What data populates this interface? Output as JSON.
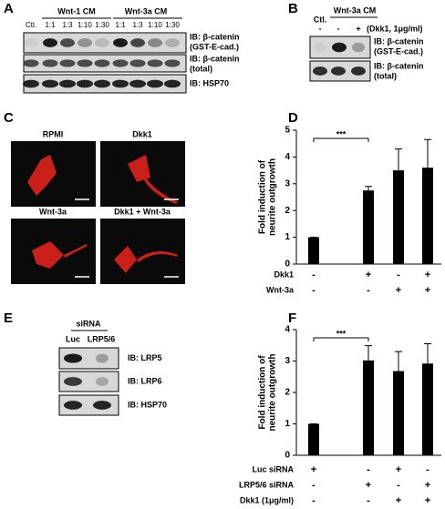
{
  "panel_labels": [
    "A",
    "B",
    "C",
    "D",
    "E",
    "F"
  ],
  "panel_a": {
    "groups": [
      "Wnt-1 CM",
      "Wnt-3a CM"
    ],
    "lanes": [
      "Ctl.",
      "1:1",
      "1:3",
      "1:10",
      "1:30",
      "1:1",
      "1:3",
      "1:10",
      "1:30"
    ],
    "blots": [
      [
        "IB: β-catenin",
        "(GST-E-cad.)"
      ],
      [
        "IB: β-catenin",
        "(total)"
      ],
      [
        "IB: HSP70"
      ]
    ]
  },
  "panel_b": {
    "group": "Wnt-3a CM",
    "control": "Ctl.",
    "treatment": [
      "-",
      "-",
      "+"
    ],
    "treatment_label": "(Dkk1, 1μg/ml)",
    "blots": [
      [
        "IB: β-catenin",
        "(GST-E-cad.)"
      ],
      [
        "IB: β-catenin",
        "(total)"
      ]
    ]
  },
  "panel_c": {
    "images": [
      "RPMI",
      "Dkk1",
      "Wnt-3a",
      "Dkk1 + Wnt-3a"
    ]
  },
  "panel_e": {
    "group": "siRNA",
    "lanes": [
      "Luc",
      "LRP5/6"
    ],
    "blots": [
      "IB: LRP5",
      "IB: LRP6",
      "IB: HSP70"
    ]
  },
  "chart_data": [
    {
      "type": "bar",
      "ylabel": [
        "Fold induction of",
        "neurite outgrowth"
      ],
      "color": "#000000",
      "values": [
        1.0,
        2.75,
        3.5,
        3.6
      ],
      "errors": [
        0,
        0.15,
        0.8,
        1.05
      ],
      "ylim": [
        0,
        5
      ],
      "yticks": [
        0,
        1,
        2,
        3,
        4,
        5
      ],
      "significance": "***",
      "conditions": [
        {
          "name": "Dkk1",
          "marks": [
            "-",
            "+",
            "-",
            "+"
          ]
        },
        {
          "name": "Wnt-3a",
          "marks": [
            "-",
            "-",
            "+",
            "+"
          ]
        }
      ]
    },
    {
      "type": "bar",
      "ylabel": [
        "Fold induction of",
        "neurite outgrowth"
      ],
      "color": "#000000",
      "values": [
        1.0,
        3.02,
        2.68,
        2.92
      ],
      "errors": [
        0,
        0.47,
        0.62,
        0.63
      ],
      "ylim": [
        0,
        4
      ],
      "yticks": [
        0,
        1,
        2,
        3,
        4
      ],
      "significance": "***",
      "conditions": [
        {
          "name": "Luc siRNA",
          "marks": [
            "+",
            "-",
            "+",
            "-"
          ]
        },
        {
          "name": "LRP5/6 siRNA",
          "marks": [
            "-",
            "+",
            "-",
            "+"
          ]
        },
        {
          "name": "Dkk1 (1μg/ml)",
          "marks": [
            "-",
            "-",
            "+",
            "+"
          ]
        }
      ]
    }
  ]
}
